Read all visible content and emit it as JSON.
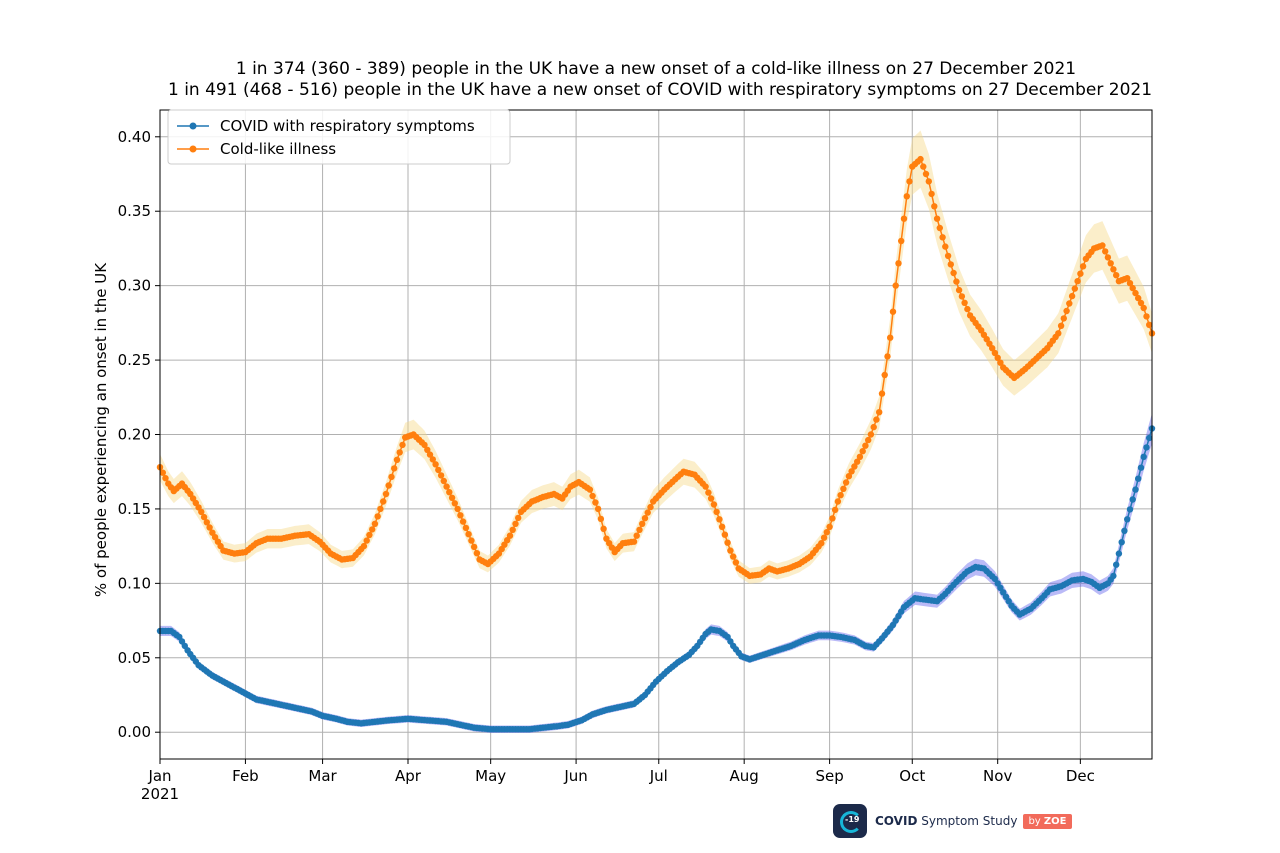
{
  "chart_data": {
    "type": "line",
    "title_line1": "1 in 374 (360 - 389) people in the UK have a new onset of a cold-like illness on 27 December 2021",
    "title_line2": "1 in 491 (468 - 516) people in the UK have a new onset of COVID with respiratory symptoms on 27 December 2021",
    "ylabel": "% of people experiencing an onset in the UK",
    "xlabel": "",
    "ylim": [
      -0.018,
      0.418
    ],
    "xlim": [
      "2021-01-01",
      "2021-12-27"
    ],
    "yticks": [
      "0.00",
      "0.05",
      "0.10",
      "0.15",
      "0.20",
      "0.25",
      "0.30",
      "0.35",
      "0.40"
    ],
    "xticks": [
      {
        "date": "2021-01-01",
        "label": "Jan",
        "sub": "2021"
      },
      {
        "date": "2021-02-01",
        "label": "Feb"
      },
      {
        "date": "2021-03-01",
        "label": "Mar"
      },
      {
        "date": "2021-04-01",
        "label": "Apr"
      },
      {
        "date": "2021-05-01",
        "label": "May"
      },
      {
        "date": "2021-06-01",
        "label": "Jun"
      },
      {
        "date": "2021-07-01",
        "label": "Jul"
      },
      {
        "date": "2021-08-01",
        "label": "Aug"
      },
      {
        "date": "2021-09-01",
        "label": "Sep"
      },
      {
        "date": "2021-10-01",
        "label": "Oct"
      },
      {
        "date": "2021-11-01",
        "label": "Nov"
      },
      {
        "date": "2021-12-01",
        "label": "Dec"
      }
    ],
    "grid": true,
    "legend_position": "top-left",
    "series": [
      {
        "name": "COVID with respiratory symptoms",
        "color": "#1f77b4",
        "band_color": "#6666ee",
        "points": [
          [
            "2021-01-01",
            0.068
          ],
          [
            "2021-01-05",
            0.068
          ],
          [
            "2021-01-08",
            0.064
          ],
          [
            "2021-01-11",
            0.055
          ],
          [
            "2021-01-15",
            0.045
          ],
          [
            "2021-01-20",
            0.038
          ],
          [
            "2021-01-25",
            0.033
          ],
          [
            "2021-01-31",
            0.027
          ],
          [
            "2021-02-05",
            0.022
          ],
          [
            "2021-02-10",
            0.02
          ],
          [
            "2021-02-15",
            0.018
          ],
          [
            "2021-02-20",
            0.016
          ],
          [
            "2021-02-25",
            0.014
          ],
          [
            "2021-03-01",
            0.011
          ],
          [
            "2021-03-06",
            0.009
          ],
          [
            "2021-03-10",
            0.007
          ],
          [
            "2021-03-15",
            0.006
          ],
          [
            "2021-03-20",
            0.007
          ],
          [
            "2021-03-25",
            0.008
          ],
          [
            "2021-04-01",
            0.009
          ],
          [
            "2021-04-08",
            0.008
          ],
          [
            "2021-04-15",
            0.007
          ],
          [
            "2021-04-20",
            0.005
          ],
          [
            "2021-04-25",
            0.003
          ],
          [
            "2021-05-01",
            0.002
          ],
          [
            "2021-05-05",
            0.002
          ],
          [
            "2021-05-10",
            0.002
          ],
          [
            "2021-05-15",
            0.002
          ],
          [
            "2021-05-20",
            0.003
          ],
          [
            "2021-05-25",
            0.004
          ],
          [
            "2021-05-29",
            0.005
          ],
          [
            "2021-06-03",
            0.008
          ],
          [
            "2021-06-07",
            0.012
          ],
          [
            "2021-06-12",
            0.015
          ],
          [
            "2021-06-17",
            0.017
          ],
          [
            "2021-06-22",
            0.019
          ],
          [
            "2021-06-26",
            0.025
          ],
          [
            "2021-06-30",
            0.034
          ],
          [
            "2021-07-04",
            0.041
          ],
          [
            "2021-07-08",
            0.047
          ],
          [
            "2021-07-12",
            0.052
          ],
          [
            "2021-07-15",
            0.058
          ],
          [
            "2021-07-18",
            0.066
          ],
          [
            "2021-07-20",
            0.069
          ],
          [
            "2021-07-23",
            0.068
          ],
          [
            "2021-07-26",
            0.064
          ],
          [
            "2021-07-28",
            0.058
          ],
          [
            "2021-07-31",
            0.051
          ],
          [
            "2021-08-03",
            0.049
          ],
          [
            "2021-08-08",
            0.052
          ],
          [
            "2021-08-13",
            0.055
          ],
          [
            "2021-08-18",
            0.058
          ],
          [
            "2021-08-23",
            0.062
          ],
          [
            "2021-08-28",
            0.065
          ],
          [
            "2021-09-01",
            0.065
          ],
          [
            "2021-09-05",
            0.064
          ],
          [
            "2021-09-10",
            0.062
          ],
          [
            "2021-09-14",
            0.058
          ],
          [
            "2021-09-17",
            0.057
          ],
          [
            "2021-09-20",
            0.063
          ],
          [
            "2021-09-24",
            0.072
          ],
          [
            "2021-09-28",
            0.084
          ],
          [
            "2021-10-02",
            0.09
          ],
          [
            "2021-10-06",
            0.089
          ],
          [
            "2021-10-10",
            0.088
          ],
          [
            "2021-10-13",
            0.093
          ],
          [
            "2021-10-17",
            0.101
          ],
          [
            "2021-10-21",
            0.108
          ],
          [
            "2021-10-24",
            0.111
          ],
          [
            "2021-10-27",
            0.11
          ],
          [
            "2021-10-31",
            0.103
          ],
          [
            "2021-11-03",
            0.094
          ],
          [
            "2021-11-06",
            0.085
          ],
          [
            "2021-11-09",
            0.079
          ],
          [
            "2021-11-13",
            0.083
          ],
          [
            "2021-11-17",
            0.09
          ],
          [
            "2021-11-20",
            0.096
          ],
          [
            "2021-11-24",
            0.098
          ],
          [
            "2021-11-28",
            0.102
          ],
          [
            "2021-12-02",
            0.103
          ],
          [
            "2021-12-05",
            0.101
          ],
          [
            "2021-12-08",
            0.097
          ],
          [
            "2021-12-11",
            0.1
          ],
          [
            "2021-12-13",
            0.105
          ],
          [
            "2021-12-15",
            0.12
          ],
          [
            "2021-12-18",
            0.143
          ],
          [
            "2021-12-21",
            0.163
          ],
          [
            "2021-12-24",
            0.185
          ],
          [
            "2021-12-27",
            0.204
          ]
        ]
      },
      {
        "name": "Cold-like illness",
        "color": "#ff7f0e",
        "band_color": "#f7d98a",
        "points": [
          [
            "2021-01-01",
            0.178
          ],
          [
            "2021-01-04",
            0.167
          ],
          [
            "2021-01-06",
            0.162
          ],
          [
            "2021-01-09",
            0.167
          ],
          [
            "2021-01-12",
            0.16
          ],
          [
            "2021-01-16",
            0.148
          ],
          [
            "2021-01-20",
            0.134
          ],
          [
            "2021-01-24",
            0.122
          ],
          [
            "2021-01-28",
            0.12
          ],
          [
            "2021-02-01",
            0.121
          ],
          [
            "2021-02-05",
            0.127
          ],
          [
            "2021-02-09",
            0.13
          ],
          [
            "2021-02-14",
            0.13
          ],
          [
            "2021-02-19",
            0.132
          ],
          [
            "2021-02-24",
            0.133
          ],
          [
            "2021-02-28",
            0.128
          ],
          [
            "2021-03-04",
            0.12
          ],
          [
            "2021-03-08",
            0.116
          ],
          [
            "2021-03-12",
            0.117
          ],
          [
            "2021-03-16",
            0.125
          ],
          [
            "2021-03-20",
            0.14
          ],
          [
            "2021-03-24",
            0.16
          ],
          [
            "2021-03-28",
            0.183
          ],
          [
            "2021-03-31",
            0.198
          ],
          [
            "2021-04-03",
            0.2
          ],
          [
            "2021-04-07",
            0.193
          ],
          [
            "2021-04-11",
            0.18
          ],
          [
            "2021-04-15",
            0.165
          ],
          [
            "2021-04-19",
            0.15
          ],
          [
            "2021-04-23",
            0.133
          ],
          [
            "2021-04-27",
            0.116
          ],
          [
            "2021-04-30",
            0.113
          ],
          [
            "2021-05-04",
            0.12
          ],
          [
            "2021-05-08",
            0.132
          ],
          [
            "2021-05-12",
            0.148
          ],
          [
            "2021-05-16",
            0.155
          ],
          [
            "2021-05-20",
            0.158
          ],
          [
            "2021-05-24",
            0.16
          ],
          [
            "2021-05-27",
            0.157
          ],
          [
            "2021-05-30",
            0.165
          ],
          [
            "2021-06-02",
            0.168
          ],
          [
            "2021-06-06",
            0.163
          ],
          [
            "2021-06-09",
            0.15
          ],
          [
            "2021-06-12",
            0.13
          ],
          [
            "2021-06-15",
            0.121
          ],
          [
            "2021-06-18",
            0.127
          ],
          [
            "2021-06-22",
            0.128
          ],
          [
            "2021-06-25",
            0.14
          ],
          [
            "2021-06-29",
            0.155
          ],
          [
            "2021-07-03",
            0.163
          ],
          [
            "2021-07-07",
            0.17
          ],
          [
            "2021-07-10",
            0.175
          ],
          [
            "2021-07-14",
            0.173
          ],
          [
            "2021-07-18",
            0.165
          ],
          [
            "2021-07-21",
            0.153
          ],
          [
            "2021-07-24",
            0.138
          ],
          [
            "2021-07-27",
            0.122
          ],
          [
            "2021-07-30",
            0.11
          ],
          [
            "2021-08-03",
            0.105
          ],
          [
            "2021-08-07",
            0.106
          ],
          [
            "2021-08-10",
            0.11
          ],
          [
            "2021-08-13",
            0.108
          ],
          [
            "2021-08-17",
            0.11
          ],
          [
            "2021-08-21",
            0.113
          ],
          [
            "2021-08-25",
            0.118
          ],
          [
            "2021-08-29",
            0.127
          ],
          [
            "2021-09-01",
            0.138
          ],
          [
            "2021-09-04",
            0.155
          ],
          [
            "2021-09-08",
            0.172
          ],
          [
            "2021-09-12",
            0.185
          ],
          [
            "2021-09-16",
            0.2
          ],
          [
            "2021-09-19",
            0.215
          ],
          [
            "2021-09-21",
            0.24
          ],
          [
            "2021-09-23",
            0.265
          ],
          [
            "2021-09-25",
            0.3
          ],
          [
            "2021-09-27",
            0.33
          ],
          [
            "2021-09-29",
            0.36
          ],
          [
            "2021-10-01",
            0.38
          ],
          [
            "2021-10-04",
            0.385
          ],
          [
            "2021-10-07",
            0.37
          ],
          [
            "2021-10-10",
            0.345
          ],
          [
            "2021-10-14",
            0.32
          ],
          [
            "2021-10-18",
            0.297
          ],
          [
            "2021-10-22",
            0.28
          ],
          [
            "2021-10-26",
            0.27
          ],
          [
            "2021-10-30",
            0.258
          ],
          [
            "2021-11-03",
            0.245
          ],
          [
            "2021-11-07",
            0.238
          ],
          [
            "2021-11-11",
            0.244
          ],
          [
            "2021-11-15",
            0.251
          ],
          [
            "2021-11-19",
            0.258
          ],
          [
            "2021-11-23",
            0.268
          ],
          [
            "2021-11-26",
            0.283
          ],
          [
            "2021-11-30",
            0.303
          ],
          [
            "2021-12-03",
            0.318
          ],
          [
            "2021-12-06",
            0.325
          ],
          [
            "2021-12-09",
            0.327
          ],
          [
            "2021-12-12",
            0.315
          ],
          [
            "2021-12-15",
            0.303
          ],
          [
            "2021-12-18",
            0.305
          ],
          [
            "2021-12-21",
            0.295
          ],
          [
            "2021-12-24",
            0.285
          ],
          [
            "2021-12-27",
            0.268
          ]
        ]
      }
    ]
  },
  "logo": {
    "badge_text": "-19",
    "name_bold": "COVID",
    "name_rest": " Symptom Study",
    "by_text": "by ",
    "brand": "ZOE"
  }
}
